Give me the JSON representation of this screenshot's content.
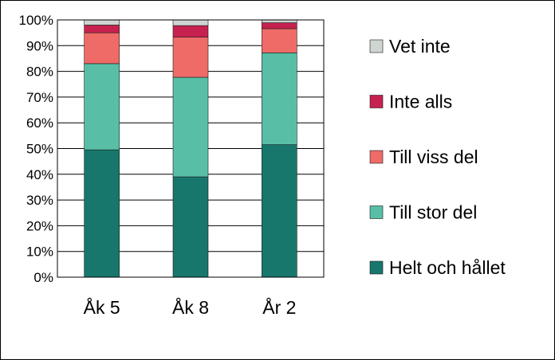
{
  "chart_data": {
    "type": "bar",
    "stacked": true,
    "categories": [
      "Åk 5",
      "Åk 8",
      "År 2"
    ],
    "ylim": [
      0,
      100
    ],
    "yticks": [
      "0%",
      "10%",
      "20%",
      "30%",
      "40%",
      "50%",
      "60%",
      "70%",
      "80%",
      "90%",
      "100%"
    ],
    "grid": true,
    "legend_position": "right",
    "series": [
      {
        "name": "Helt och hållet",
        "color": "#17776d",
        "values": [
          49.5,
          39,
          51.5
        ]
      },
      {
        "name": "Till stor del",
        "color": "#58bfa6",
        "values": [
          33.5,
          38.7,
          35.7
        ]
      },
      {
        "name": "Till viss del",
        "color": "#ef6b67",
        "values": [
          12,
          15.6,
          9.4
        ]
      },
      {
        "name": "Inte alls",
        "color": "#c7214f",
        "values": [
          3,
          4.5,
          2.3
        ]
      },
      {
        "name": "Vet inte",
        "color": "#cfd5d1",
        "values": [
          2,
          2.2,
          1.1
        ]
      }
    ]
  }
}
